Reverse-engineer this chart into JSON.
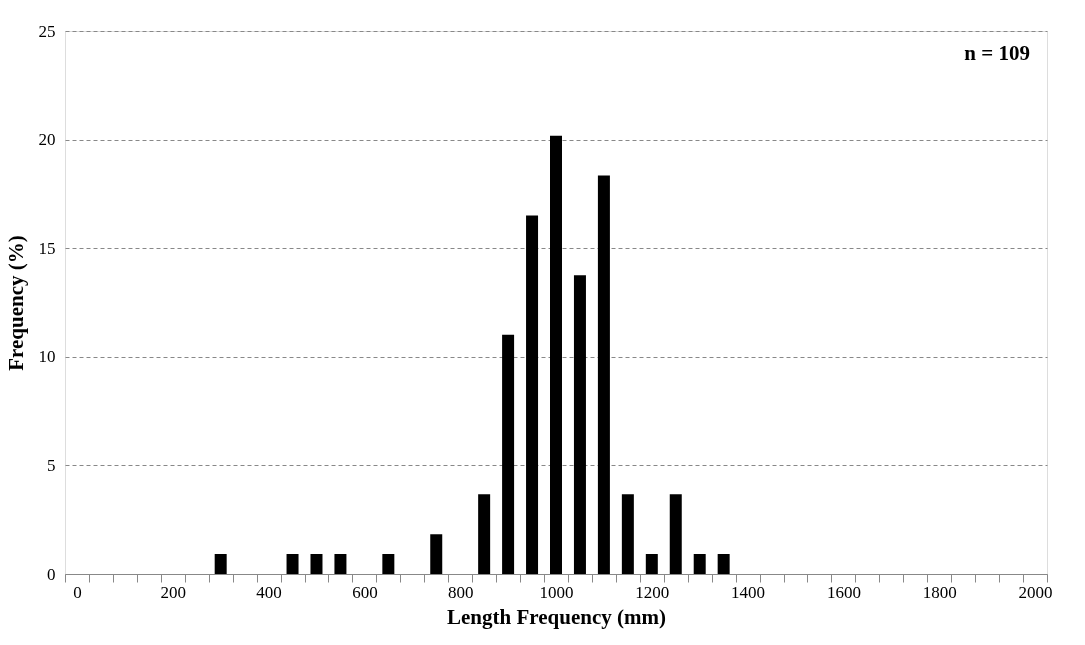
{
  "chart_data": {
    "type": "bar",
    "xlabel": "Length Frequency (mm)",
    "ylabel": "Frequency (%)",
    "annotations": [
      "n = 109"
    ],
    "categories": [
      "0",
      null,
      null,
      null,
      "200",
      null,
      null,
      null,
      "400",
      null,
      null,
      null,
      "600",
      null,
      null,
      null,
      "800",
      null,
      null,
      null,
      "1000",
      null,
      null,
      null,
      "1200",
      null,
      null,
      null,
      "1400",
      null,
      null,
      null,
      "1600",
      null,
      null,
      null,
      "1800",
      null,
      null,
      null,
      "2000"
    ],
    "values": [
      0,
      0,
      0,
      0,
      0,
      0,
      0.92,
      0,
      0,
      0.92,
      0.92,
      0.92,
      0,
      0.92,
      0,
      1.83,
      0,
      3.67,
      11.01,
      16.51,
      20.18,
      13.76,
      18.35,
      3.67,
      0.92,
      3.67,
      0.92,
      0.92,
      0,
      0,
      0,
      0,
      0,
      0,
      0,
      0,
      0,
      0,
      0,
      0,
      0
    ],
    "color": "#000000",
    "ylim": [
      0,
      25
    ],
    "yticks": [
      0,
      5,
      10,
      15,
      20,
      25
    ],
    "grid": "y"
  }
}
